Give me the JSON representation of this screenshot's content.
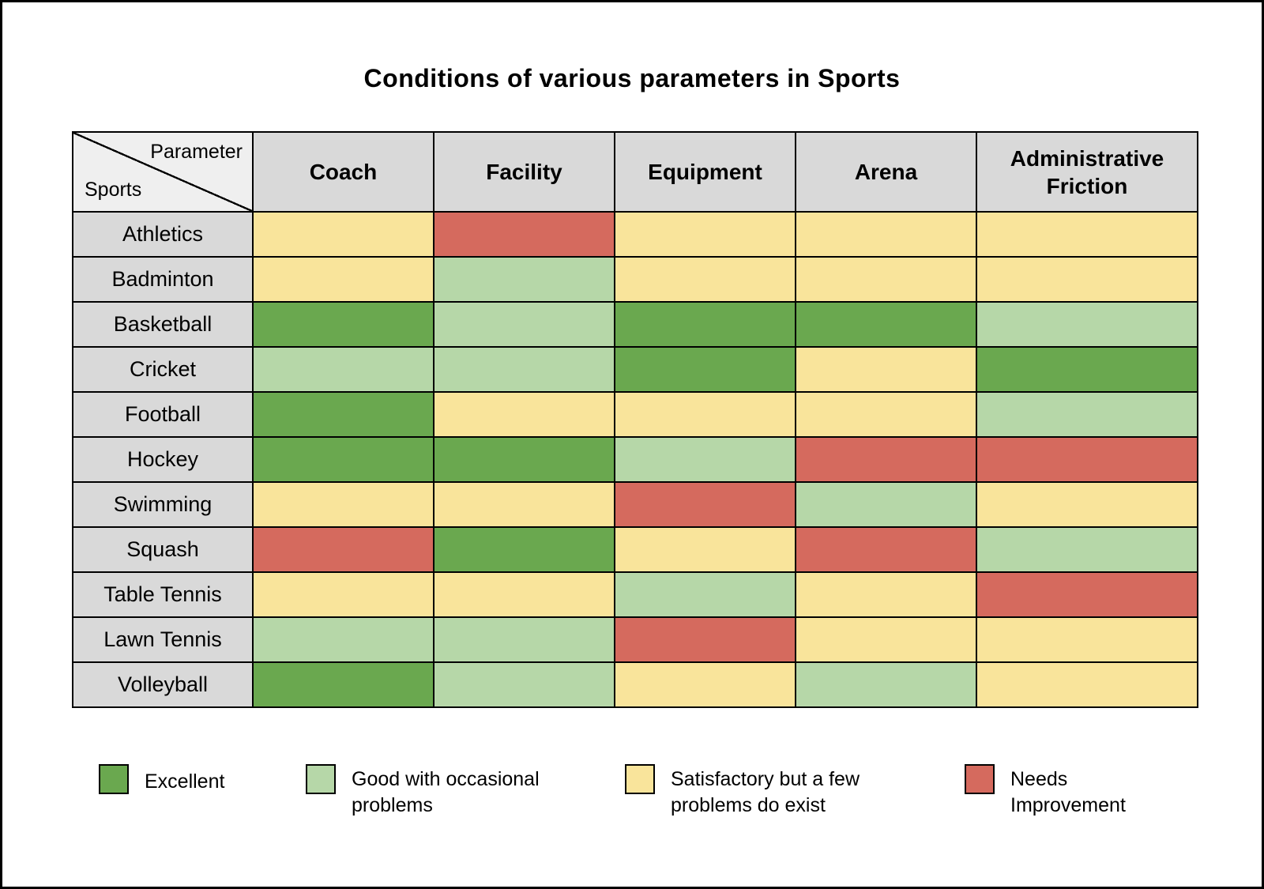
{
  "title": "Conditions of various parameters in Sports",
  "corner": {
    "top_label": "Parameter",
    "bottom_label": "Sports"
  },
  "colors": {
    "excellent": "#6aa84f",
    "good": "#b6d7a8",
    "satisfactory": "#f9e49b",
    "needs_improvement": "#d56a5e",
    "header_bg": "#d9d9d9",
    "corner_bg": "#efefef",
    "border": "#000000"
  },
  "legend": [
    {
      "key": "excellent",
      "label": "Excellent"
    },
    {
      "key": "good",
      "label": "Good with occasional problems"
    },
    {
      "key": "satisfactory",
      "label": "Satisfactory but a few problems do exist"
    },
    {
      "key": "needs_improvement",
      "label": "Needs Improvement"
    }
  ],
  "chart_data": {
    "type": "heatmap",
    "title": "Conditions of various parameters in Sports",
    "columns": [
      "Coach",
      "Facility",
      "Equipment",
      "Arena",
      "Administrative Friction"
    ],
    "rows": [
      "Athletics",
      "Badminton",
      "Basketball",
      "Cricket",
      "Football",
      "Hockey",
      "Swimming",
      "Squash",
      "Table Tennis",
      "Lawn Tennis",
      "Volleyball"
    ],
    "values": [
      [
        "satisfactory",
        "needs_improvement",
        "satisfactory",
        "satisfactory",
        "satisfactory"
      ],
      [
        "satisfactory",
        "good",
        "satisfactory",
        "satisfactory",
        "satisfactory"
      ],
      [
        "excellent",
        "good",
        "excellent",
        "excellent",
        "good"
      ],
      [
        "good",
        "good",
        "excellent",
        "satisfactory",
        "excellent"
      ],
      [
        "excellent",
        "satisfactory",
        "satisfactory",
        "satisfactory",
        "good"
      ],
      [
        "excellent",
        "excellent",
        "good",
        "needs_improvement",
        "needs_improvement"
      ],
      [
        "satisfactory",
        "satisfactory",
        "needs_improvement",
        "good",
        "satisfactory"
      ],
      [
        "needs_improvement",
        "excellent",
        "satisfactory",
        "needs_improvement",
        "good"
      ],
      [
        "satisfactory",
        "satisfactory",
        "good",
        "satisfactory",
        "needs_improvement"
      ],
      [
        "good",
        "good",
        "needs_improvement",
        "satisfactory",
        "satisfactory"
      ],
      [
        "excellent",
        "good",
        "satisfactory",
        "good",
        "satisfactory"
      ]
    ],
    "value_scale": [
      "needs_improvement",
      "satisfactory",
      "good",
      "excellent"
    ],
    "legend_position": "bottom"
  }
}
